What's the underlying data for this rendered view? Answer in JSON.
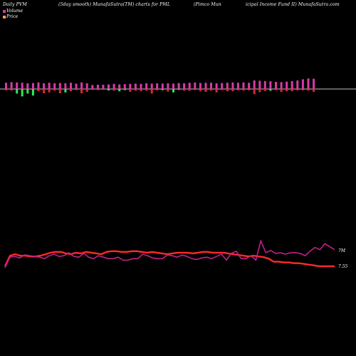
{
  "header": {
    "daily": "Daily PVM",
    "smooth": "(5day smooth) MunafaSutra(TM) charts for PML",
    "name_a": "(Pimco  Mun",
    "name_b": "icipal Income   Fund II) MunafaSutra.com"
  },
  "legend": {
    "volume_label": "Volume",
    "volume_color": "#d83aa6",
    "price_label": "Price",
    "price_color": "#f0a050"
  },
  "chart_data": [
    {
      "type": "bar",
      "series": [
        {
          "name": "Volume",
          "values": [
            2.2,
            2.4,
            2.3,
            2.2,
            2.0,
            2.1,
            2.3,
            2.0,
            2.2,
            2.0,
            2.1,
            2.0,
            2.2,
            1.9,
            2.3,
            2.0,
            1.4,
            1.5,
            1.5,
            1.6,
            1.8,
            1.6,
            1.7,
            1.8,
            1.9,
            1.8,
            2.0,
            1.9,
            2.0,
            1.9,
            2.0,
            1.9,
            2.1,
            2.0,
            2.2,
            2.3,
            2.1,
            2.2,
            2.2,
            2.0,
            2.1,
            2.2,
            2.3,
            2.2,
            2.3,
            2.2,
            3.0,
            2.9,
            2.8,
            2.7,
            2.5,
            2.4,
            2.6,
            2.8,
            3.0,
            3.4,
            3.7,
            3.6
          ],
          "below": [
            0.5,
            0.6,
            1.6,
            2.6,
            1.6,
            2.3,
            0.8,
            1.5,
            1.2,
            0.6,
            1.5,
            1.2,
            0.8,
            0.4,
            1.5,
            1.0,
            0.3,
            0.4,
            0.3,
            0.5,
            0.6,
            0.8,
            0.4,
            1.0,
            0.6,
            0.8,
            0.6,
            1.6,
            0.5,
            0.4,
            0.9,
            1.2,
            0.3,
            0.6,
            0.6,
            0.4,
            0.8,
            1.0,
            0.6,
            1.2,
            0.4,
            0.8,
            0.8,
            0.5,
            0.6,
            0.5,
            1.8,
            1.1,
            0.7,
            0.6,
            0.4,
            1.0,
            0.8,
            0.8,
            0.5,
            0.5,
            0.6,
            1.0
          ],
          "below_green": [
            2,
            3,
            4,
            5,
            11,
            19,
            21,
            22,
            29,
            31,
            32,
            49
          ]
        }
      ]
    },
    {
      "type": "line",
      "yticks": [
        "7M",
        "7.55"
      ],
      "series": [
        {
          "color": "#ff2a2a",
          "values": [
            7.55,
            7.62,
            7.63,
            7.62,
            7.62,
            7.615,
            7.615,
            7.62,
            7.63,
            7.64,
            7.645,
            7.645,
            7.635,
            7.63,
            7.64,
            7.635,
            7.645,
            7.64,
            7.635,
            7.63,
            7.645,
            7.65,
            7.65,
            7.645,
            7.645,
            7.65,
            7.65,
            7.645,
            7.64,
            7.645,
            7.64,
            7.635,
            7.63,
            7.635,
            7.64,
            7.64,
            7.64,
            7.635,
            7.64,
            7.645,
            7.645,
            7.64,
            7.64,
            7.64,
            7.635,
            7.63,
            7.625,
            7.62,
            7.615,
            7.62,
            7.615,
            7.61,
            7.6,
            7.58,
            7.58,
            7.575,
            7.575,
            7.57,
            7.57,
            7.565,
            7.56,
            7.555,
            7.55,
            7.55,
            7.55,
            7.55
          ]
        },
        {
          "color": "#c0208a",
          "values": [
            7.54,
            7.61,
            7.615,
            7.605,
            7.625,
            7.62,
            7.615,
            7.61,
            7.6,
            7.62,
            7.63,
            7.615,
            7.62,
            7.64,
            7.615,
            7.61,
            7.635,
            7.61,
            7.6,
            7.62,
            7.61,
            7.6,
            7.6,
            7.61,
            7.59,
            7.59,
            7.6,
            7.6,
            7.63,
            7.62,
            7.605,
            7.6,
            7.6,
            7.625,
            7.62,
            7.61,
            7.625,
            7.615,
            7.6,
            7.595,
            7.605,
            7.61,
            7.6,
            7.615,
            7.63,
            7.59,
            7.635,
            7.65,
            7.6,
            7.6,
            7.62,
            7.59,
            7.72,
            7.64,
            7.655,
            7.635,
            7.64,
            7.63,
            7.64,
            7.64,
            7.635,
            7.62,
            7.65,
            7.675,
            7.66,
            7.7,
            7.68,
            7.66
          ]
        }
      ]
    }
  ]
}
